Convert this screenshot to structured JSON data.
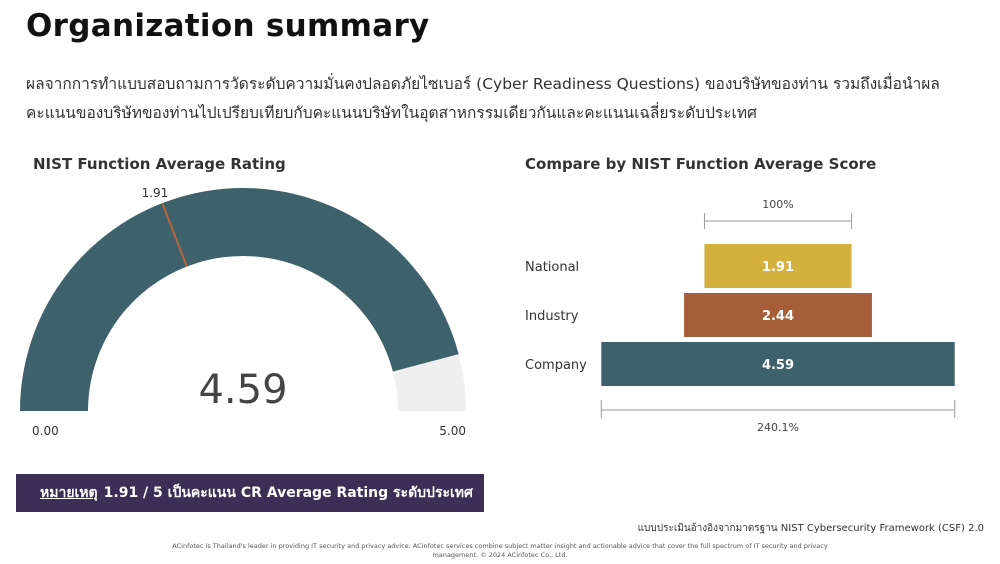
{
  "page": {
    "title": "Organization summary",
    "description": "ผลจากการทำแบบสอบถามการวัดระดับความมั่นคงปลอดภัยไซเบอร์ (Cyber Readiness Questions) ของบริษัทของท่าน รวมถึงเมื่อนำผลคะแนนของบริษัทของท่านไปเปรียบเทียบกับคะแนนบริษัทในอุตสาหกรรมเดียวกันและคะแนนเฉลี่ยระดับประเทศ"
  },
  "note": {
    "prefix": "หมายเหตุ",
    "text": "1.91 / 5 เป็นคะแนน CR Average Rating ระดับประเทศ"
  },
  "footer": {
    "framework": "แบบประเมินอ้างอิงจากมาตรฐาน NIST Cybersecurity Framework (CSF) 2.0",
    "company_line1": "ACinfotec is Thailand's leader in providing IT security and privacy advice.  ACinfotec services combine subject matter insight and actionable advice that cover the full spectrum of IT security and privacy",
    "company_line2": "management. © 2024 ACinfotec Co., Ltd."
  },
  "chart_data": [
    {
      "type": "gauge",
      "title": "NIST Function Average Rating",
      "value": 4.59,
      "min": 0,
      "max": 5,
      "min_label": "0.00",
      "max_label": "5.00",
      "value_label": "4.59",
      "marker": {
        "value": 1.91,
        "label": "1.91"
      },
      "colors": {
        "fill": "#3e626b",
        "track": "#efefef",
        "marker": "#b8653a"
      }
    },
    {
      "type": "bar",
      "orientation": "horizontal-centered",
      "title": "Compare by NIST Function Average Score",
      "categories": [
        "National",
        "Industry",
        "Company"
      ],
      "values": [
        1.91,
        2.44,
        4.59
      ],
      "value_labels": [
        "1.91",
        "2.44",
        "4.59"
      ],
      "colors": [
        "#d4b03e",
        "#a65e3a",
        "#3e626b"
      ],
      "top_bracket_label": "100%",
      "bottom_bracket_label": "240.1%"
    }
  ]
}
